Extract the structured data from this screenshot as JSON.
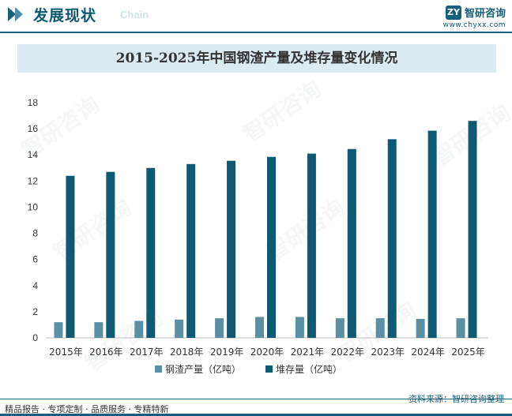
{
  "header": {
    "section_title": "发展现状",
    "section_title_en": "Chain",
    "brand_name": "智研咨询",
    "brand_url": "www.chyxx.com"
  },
  "watermark_text": "智研咨询",
  "colors": {
    "accent": "#1a5f7a",
    "series_production": "#5b8fa3",
    "series_stock": "#0e5a73",
    "title_band": "#dcebf1"
  },
  "chart_data": {
    "type": "bar",
    "title": "2015-2025年中国钢渣产量及堆存量变化情况",
    "xlabel": "",
    "ylabel": "",
    "ylim": [
      0,
      18
    ],
    "yticks": [
      "0",
      "2",
      "4",
      "6",
      "8",
      "10",
      "12",
      "14",
      "16",
      "18"
    ],
    "grid": false,
    "legend_position": "bottom",
    "categories": [
      "2015年",
      "2016年",
      "2017年",
      "2018年",
      "2019年",
      "2020年",
      "2021年",
      "2022年",
      "2023年",
      "2024年",
      "2025年"
    ],
    "series": [
      {
        "name": "钢渣产量（亿吨）",
        "values": [
          1.2,
          1.2,
          1.3,
          1.4,
          1.5,
          1.6,
          1.6,
          1.5,
          1.5,
          1.45,
          1.5
        ]
      },
      {
        "name": "堆存量（亿吨）",
        "values": [
          12.4,
          12.7,
          13.0,
          13.3,
          13.55,
          13.85,
          14.1,
          14.45,
          15.2,
          15.85,
          16.6
        ]
      }
    ]
  },
  "footer": {
    "tagline": "精品报告 · 专项定制 · 品质服务 · 专精特新",
    "source": "资料来源：智研咨询整理"
  }
}
